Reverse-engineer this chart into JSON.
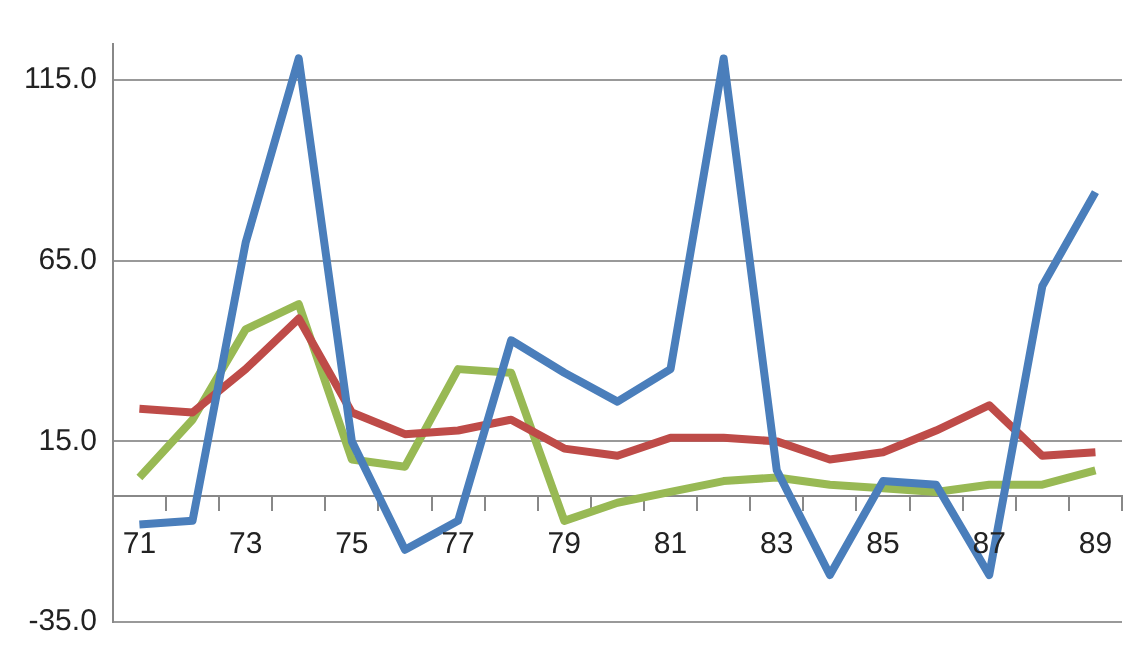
{
  "chart_data": {
    "type": "line",
    "categories": [
      "71",
      null,
      "73",
      null,
      "75",
      null,
      "77",
      null,
      "79",
      null,
      "81",
      null,
      "83",
      null,
      "85",
      null,
      "87",
      null,
      "89"
    ],
    "series": [
      {
        "color": "#4a7ebb",
        "values": [
          -8,
          -7,
          70,
          121,
          15,
          -15,
          -7,
          43,
          34,
          26,
          35,
          121,
          7,
          -22,
          4,
          3,
          -22,
          58,
          84
        ]
      },
      {
        "color": "#be4b48",
        "values": [
          24,
          23,
          35,
          49,
          23,
          17,
          18,
          21,
          13,
          11,
          16,
          16,
          15,
          10,
          12,
          18,
          25,
          11,
          12
        ]
      },
      {
        "color": "#98b954",
        "values": [
          5,
          21,
          46,
          53,
          10,
          8,
          35,
          34,
          -7,
          -2,
          1,
          4,
          5,
          3,
          2,
          1,
          3,
          3,
          7
        ]
      }
    ],
    "ylim": [
      -35,
      125
    ],
    "yticks": [
      {
        "value": -35,
        "label": "-35.0"
      },
      {
        "value": 15,
        "label": "15.0"
      },
      {
        "value": 65,
        "label": "65.0"
      },
      {
        "value": 115,
        "label": "115.0"
      }
    ],
    "grid": "y",
    "legend": false,
    "marker": "none",
    "line_style": "solid"
  }
}
